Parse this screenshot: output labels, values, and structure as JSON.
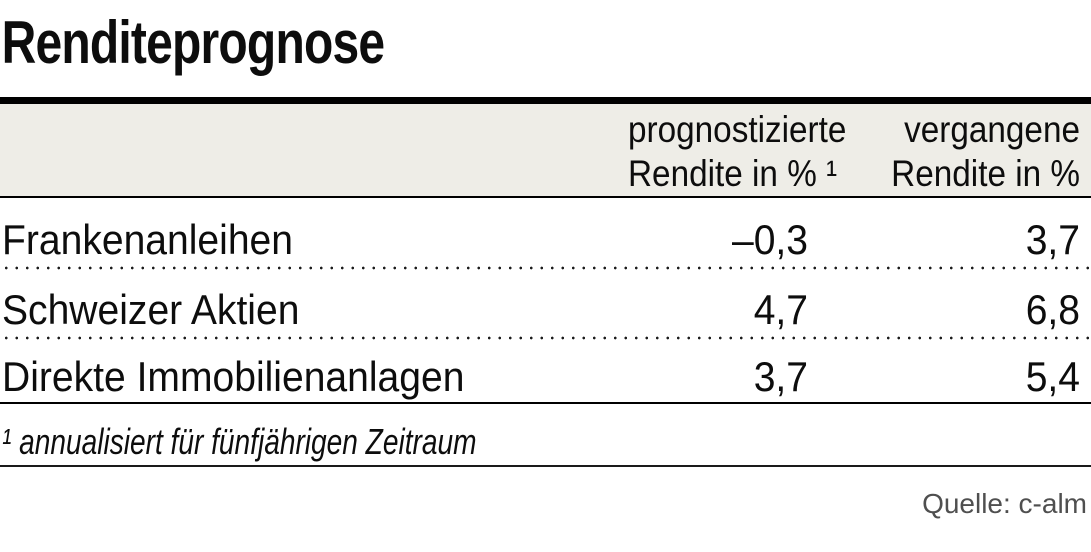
{
  "title": "Renditeprognose",
  "table": {
    "header": {
      "forecast": {
        "line1": "prognostizierte",
        "line2": "Rendite in % ¹"
      },
      "past": {
        "line1": "vergangene",
        "line2": "Rendite in %"
      }
    },
    "rows": [
      {
        "label": "Frankenanleihen",
        "forecast": "–0,3",
        "past": "3,7"
      },
      {
        "label": "Schweizer Aktien",
        "forecast": "4,7",
        "past": "6,8"
      },
      {
        "label": "Direkte Immobilienanlagen",
        "forecast": "3,7",
        "past": "5,4"
      }
    ]
  },
  "footnote": "¹ annualisiert für fünfjährigen Zeitraum",
  "source": "Quelle: c-alm",
  "colors": {
    "header_background": "#eeede7",
    "rule_black": "#000000",
    "dotted_separator": "#1a1a1a",
    "source_text": "#4f4f4f"
  },
  "chart_data": {
    "type": "table",
    "title": "Renditeprognose",
    "columns": [
      "",
      "prognostizierte Rendite in % ¹",
      "vergangene Rendite in %"
    ],
    "rows": [
      [
        "Frankenanleihen",
        -0.3,
        3.7
      ],
      [
        "Schweizer Aktien",
        4.7,
        6.8
      ],
      [
        "Direkte Immobilienanlagen",
        3.7,
        5.4
      ]
    ],
    "value_format": "decimal comma, percent",
    "footnote": "¹ annualisiert für fünfjährigen Zeitraum",
    "source": "Quelle: c-alm"
  }
}
